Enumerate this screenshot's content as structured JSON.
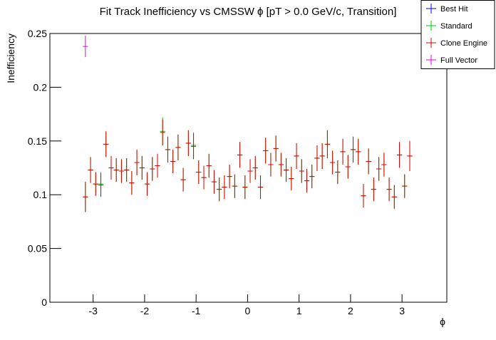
{
  "chart_data": {
    "type": "errorbar",
    "title": "Fit Track Inefficiency vs CMSSW ϕ [pT > 0.0 GeV/c, Transition]",
    "x_label": "ϕ",
    "y_label": "Inefficiency",
    "xlim": [
      -3.84,
      3.87
    ],
    "xticks": [
      -3,
      -2,
      -1,
      0,
      1,
      2,
      3
    ],
    "ylim": [
      0,
      0.25
    ],
    "yticks": [
      0,
      0.05,
      0.1,
      0.15,
      0.2,
      0.25
    ],
    "bin_width": 0.1,
    "series": [
      {
        "name": "Best Hit",
        "color": "#0000ff",
        "x": [],
        "values": [],
        "errors": []
      },
      {
        "name": "Standard",
        "color": "#00cc00",
        "x": [
          -3.15,
          -3.05,
          -2.95,
          -2.85,
          -2.75,
          -2.65,
          -2.55,
          -2.45,
          -2.35,
          -2.25,
          -2.15,
          -2.05,
          -1.95,
          -1.85,
          -1.75,
          -1.65,
          -1.55,
          -1.45,
          -1.35,
          -1.25,
          -1.15,
          -1.05,
          -0.95,
          -0.85,
          -0.75,
          -0.65,
          -0.55,
          -0.45,
          -0.35,
          -0.25,
          -0.15,
          -0.05,
          0.05,
          0.15,
          0.25,
          0.35,
          0.45,
          0.55,
          0.65,
          0.75,
          0.85,
          0.95,
          1.05,
          1.15,
          1.25,
          1.35,
          1.45,
          1.55,
          1.65,
          1.75,
          1.85,
          1.95,
          2.05,
          2.15,
          2.25,
          2.35,
          2.45,
          2.55,
          2.65,
          2.75,
          2.85,
          2.95,
          3.05,
          3.15
        ],
        "values": [
          0.098,
          0.123,
          0.11,
          0.11,
          0.147,
          0.125,
          0.123,
          0.122,
          0.123,
          0.111,
          0.13,
          0.125,
          0.11,
          0.124,
          0.127,
          0.159,
          0.142,
          0.131,
          0.144,
          0.114,
          0.148,
          0.146,
          0.121,
          0.116,
          0.127,
          0.112,
          0.105,
          0.107,
          0.117,
          0.108,
          0.137,
          0.107,
          0.122,
          0.125,
          0.107,
          0.141,
          0.128,
          0.143,
          0.128,
          0.123,
          0.115,
          0.136,
          0.122,
          0.113,
          0.117,
          0.134,
          0.136,
          0.147,
          0.13,
          0.121,
          0.14,
          0.126,
          0.142,
          0.14,
          0.099,
          0.131,
          0.105,
          0.124,
          0.128,
          0.105,
          0.098,
          0.137,
          0.108,
          0.136
        ],
        "errors": [
          0.014,
          0.012,
          0.011,
          0.011,
          0.012,
          0.011,
          0.011,
          0.011,
          0.011,
          0.011,
          0.012,
          0.011,
          0.011,
          0.011,
          0.011,
          0.013,
          0.012,
          0.011,
          0.012,
          0.011,
          0.012,
          0.012,
          0.011,
          0.011,
          0.011,
          0.011,
          0.011,
          0.011,
          0.011,
          0.011,
          0.012,
          0.011,
          0.011,
          0.011,
          0.011,
          0.012,
          0.011,
          0.012,
          0.011,
          0.011,
          0.011,
          0.012,
          0.011,
          0.011,
          0.011,
          0.012,
          0.012,
          0.013,
          0.011,
          0.011,
          0.012,
          0.011,
          0.012,
          0.012,
          0.011,
          0.012,
          0.011,
          0.011,
          0.011,
          0.011,
          0.011,
          0.012,
          0.011,
          0.014
        ]
      },
      {
        "name": "Clone Engine",
        "color": "#dd0000",
        "x": [
          -3.15,
          -3.05,
          -2.95,
          -2.85,
          -2.75,
          -2.65,
          -2.55,
          -2.45,
          -2.35,
          -2.25,
          -2.15,
          -2.05,
          -1.95,
          -1.85,
          -1.75,
          -1.65,
          -1.55,
          -1.45,
          -1.35,
          -1.25,
          -1.15,
          -1.05,
          -0.95,
          -0.85,
          -0.75,
          -0.65,
          -0.55,
          -0.45,
          -0.35,
          -0.25,
          -0.15,
          -0.05,
          0.05,
          0.15,
          0.25,
          0.35,
          0.45,
          0.55,
          0.65,
          0.75,
          0.85,
          0.95,
          1.05,
          1.15,
          1.25,
          1.35,
          1.45,
          1.55,
          1.65,
          1.75,
          1.85,
          1.95,
          2.05,
          2.15,
          2.25,
          2.35,
          2.45,
          2.55,
          2.65,
          2.75,
          2.85,
          2.95,
          3.05,
          3.15
        ],
        "values": [
          0.098,
          0.123,
          0.11,
          0.109,
          0.147,
          0.125,
          0.123,
          0.122,
          0.123,
          0.111,
          0.13,
          0.125,
          0.11,
          0.124,
          0.127,
          0.158,
          0.142,
          0.131,
          0.144,
          0.114,
          0.148,
          0.145,
          0.121,
          0.116,
          0.127,
          0.112,
          0.105,
          0.107,
          0.117,
          0.108,
          0.137,
          0.107,
          0.122,
          0.125,
          0.107,
          0.141,
          0.128,
          0.143,
          0.128,
          0.123,
          0.115,
          0.136,
          0.122,
          0.113,
          0.117,
          0.134,
          0.136,
          0.147,
          0.13,
          0.121,
          0.14,
          0.126,
          0.142,
          0.14,
          0.099,
          0.131,
          0.105,
          0.124,
          0.128,
          0.105,
          0.098,
          0.137,
          0.108,
          0.136
        ],
        "errors": [
          0.014,
          0.012,
          0.011,
          0.011,
          0.012,
          0.011,
          0.011,
          0.011,
          0.011,
          0.011,
          0.012,
          0.011,
          0.011,
          0.011,
          0.011,
          0.012,
          0.012,
          0.011,
          0.012,
          0.011,
          0.012,
          0.012,
          0.011,
          0.011,
          0.011,
          0.011,
          0.011,
          0.011,
          0.011,
          0.011,
          0.012,
          0.011,
          0.011,
          0.011,
          0.011,
          0.012,
          0.011,
          0.012,
          0.011,
          0.011,
          0.011,
          0.012,
          0.011,
          0.011,
          0.011,
          0.012,
          0.012,
          0.013,
          0.011,
          0.011,
          0.012,
          0.011,
          0.012,
          0.012,
          0.011,
          0.012,
          0.011,
          0.011,
          0.011,
          0.011,
          0.011,
          0.012,
          0.011,
          0.014
        ]
      },
      {
        "name": "Full Vector",
        "color": "#ee00ee",
        "x": [
          -3.15
        ],
        "values": [
          0.238
        ],
        "errors": [
          0.01
        ]
      }
    ]
  }
}
